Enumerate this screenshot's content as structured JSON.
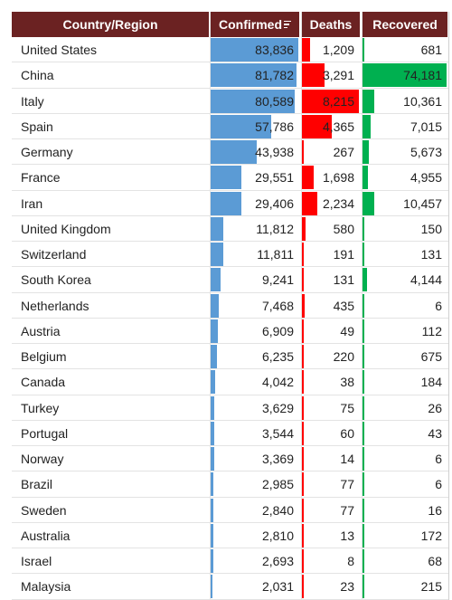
{
  "columns": {
    "country": "Country/Region",
    "confirmed": "Confirmed",
    "deaths": "Deaths",
    "recovered": "Recovered"
  },
  "sort_icon": "sort-descending-icon",
  "colors": {
    "header_bg": "#6b2222",
    "confirmed_bar": "#5b9bd5",
    "deaths_bar": "#ff0000",
    "recovered_bar": "#00b050"
  },
  "rows": [
    {
      "country": "United States",
      "confirmed": "83,836",
      "deaths": "1,209",
      "recovered": "681"
    },
    {
      "country": "China",
      "confirmed": "81,782",
      "deaths": "3,291",
      "recovered": "74,181"
    },
    {
      "country": "Italy",
      "confirmed": "80,589",
      "deaths": "8,215",
      "recovered": "10,361"
    },
    {
      "country": "Spain",
      "confirmed": "57,786",
      "deaths": "4,365",
      "recovered": "7,015"
    },
    {
      "country": "Germany",
      "confirmed": "43,938",
      "deaths": "267",
      "recovered": "5,673"
    },
    {
      "country": "France",
      "confirmed": "29,551",
      "deaths": "1,698",
      "recovered": "4,955"
    },
    {
      "country": "Iran",
      "confirmed": "29,406",
      "deaths": "2,234",
      "recovered": "10,457"
    },
    {
      "country": "United Kingdom",
      "confirmed": "11,812",
      "deaths": "580",
      "recovered": "150"
    },
    {
      "country": "Switzerland",
      "confirmed": "11,811",
      "deaths": "191",
      "recovered": "131"
    },
    {
      "country": "South Korea",
      "confirmed": "9,241",
      "deaths": "131",
      "recovered": "4,144"
    },
    {
      "country": "Netherlands",
      "confirmed": "7,468",
      "deaths": "435",
      "recovered": "6"
    },
    {
      "country": "Austria",
      "confirmed": "6,909",
      "deaths": "49",
      "recovered": "112"
    },
    {
      "country": "Belgium",
      "confirmed": "6,235",
      "deaths": "220",
      "recovered": "675"
    },
    {
      "country": "Canada",
      "confirmed": "4,042",
      "deaths": "38",
      "recovered": "184"
    },
    {
      "country": "Turkey",
      "confirmed": "3,629",
      "deaths": "75",
      "recovered": "26"
    },
    {
      "country": "Portugal",
      "confirmed": "3,544",
      "deaths": "60",
      "recovered": "43"
    },
    {
      "country": "Norway",
      "confirmed": "3,369",
      "deaths": "14",
      "recovered": "6"
    },
    {
      "country": "Brazil",
      "confirmed": "2,985",
      "deaths": "77",
      "recovered": "6"
    },
    {
      "country": "Sweden",
      "confirmed": "2,840",
      "deaths": "77",
      "recovered": "16"
    },
    {
      "country": "Australia",
      "confirmed": "2,810",
      "deaths": "13",
      "recovered": "172"
    },
    {
      "country": "Israel",
      "confirmed": "2,693",
      "deaths": "8",
      "recovered": "68"
    },
    {
      "country": "Malaysia",
      "confirmed": "2,031",
      "deaths": "23",
      "recovered": "215"
    }
  ]
}
